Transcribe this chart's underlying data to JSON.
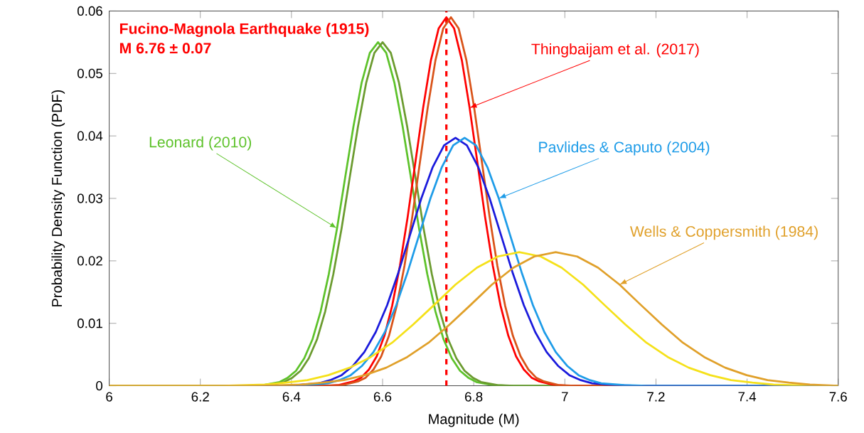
{
  "chart_data": {
    "type": "line",
    "xlabel": "Magnitude (M)",
    "ylabel": "Probability Density Function (PDF)",
    "annotations": [
      "Fucino-Magnola Earthquake (1915)",
      "M 6.76 ± 0.07"
    ],
    "xlim": [
      6,
      7.6
    ],
    "ylim": [
      0,
      0.06
    ],
    "xticks": [
      6,
      6.2,
      6.4,
      6.6,
      6.8,
      7,
      7.2,
      7.4,
      7.6
    ],
    "yticks": [
      0,
      0.01,
      0.02,
      0.03,
      0.04,
      0.05,
      0.06
    ],
    "grid": false,
    "legend": false,
    "marker": "none",
    "line_style": "solid",
    "ref_lines": [
      {
        "axis": "x",
        "value": 6.74,
        "color": "#ff0000",
        "line_style": "dashed"
      }
    ],
    "series": [
      {
        "name": "Leonard (2010)",
        "color": "#5dc22a",
        "x": [
          6.0,
          6.302,
          6.338,
          6.374,
          6.392,
          6.41,
          6.428,
          6.446,
          6.464,
          6.482,
          6.5,
          6.518,
          6.536,
          6.554,
          6.572,
          6.59,
          6.608,
          6.626,
          6.644,
          6.662,
          6.68,
          6.698,
          6.716,
          6.734,
          6.752,
          6.77,
          6.788,
          6.806,
          6.842,
          6.878,
          7.6
        ],
        "values": [
          0,
          0.0,
          0.0001,
          0.0006,
          0.0013,
          0.0024,
          0.0044,
          0.0074,
          0.0119,
          0.0179,
          0.0252,
          0.0334,
          0.0415,
          0.0485,
          0.0533,
          0.055,
          0.0533,
          0.0485,
          0.0415,
          0.0334,
          0.0252,
          0.0179,
          0.0119,
          0.0074,
          0.0044,
          0.0024,
          0.0013,
          0.0006,
          0.0001,
          0.0,
          0
        ]
      },
      {
        "color": "#6b9b2f",
        "x": [
          6.0,
          6.312,
          6.348,
          6.384,
          6.402,
          6.42,
          6.438,
          6.456,
          6.474,
          6.492,
          6.51,
          6.528,
          6.546,
          6.564,
          6.582,
          6.6,
          6.618,
          6.636,
          6.654,
          6.672,
          6.69,
          6.708,
          6.726,
          6.744,
          6.762,
          6.78,
          6.798,
          6.816,
          6.852,
          6.888,
          7.6
        ],
        "values": [
          0,
          0.0,
          0.0001,
          0.0006,
          0.0013,
          0.0024,
          0.0044,
          0.0074,
          0.0119,
          0.0179,
          0.0252,
          0.0334,
          0.0415,
          0.0485,
          0.0533,
          0.055,
          0.0533,
          0.0485,
          0.0415,
          0.0334,
          0.0252,
          0.0179,
          0.0119,
          0.0074,
          0.0044,
          0.0024,
          0.0013,
          0.0006,
          0.0001,
          0.0,
          0
        ]
      },
      {
        "name": "Thingbaijam et al. (2017)",
        "color": "#ff0000",
        "x": [
          6.0,
          6.468,
          6.502,
          6.536,
          6.553,
          6.57,
          6.587,
          6.604,
          6.621,
          6.638,
          6.655,
          6.672,
          6.689,
          6.706,
          6.723,
          6.74,
          6.757,
          6.774,
          6.791,
          6.808,
          6.825,
          6.842,
          6.859,
          6.876,
          6.893,
          6.91,
          6.927,
          6.944,
          6.978,
          7.012,
          7.6
        ],
        "values": [
          0,
          0.0,
          0.0001,
          0.0007,
          0.0013,
          0.0026,
          0.0047,
          0.008,
          0.0128,
          0.0192,
          0.027,
          0.0358,
          0.0445,
          0.0521,
          0.0572,
          0.059,
          0.0572,
          0.0521,
          0.0445,
          0.0358,
          0.027,
          0.0192,
          0.0128,
          0.008,
          0.0047,
          0.0026,
          0.0013,
          0.0007,
          0.0001,
          0.0,
          0
        ]
      },
      {
        "color": "#d95319",
        "x": [
          6.0,
          6.478,
          6.512,
          6.546,
          6.563,
          6.58,
          6.597,
          6.614,
          6.631,
          6.648,
          6.665,
          6.682,
          6.699,
          6.716,
          6.733,
          6.75,
          6.767,
          6.784,
          6.801,
          6.818,
          6.835,
          6.852,
          6.869,
          6.886,
          6.903,
          6.92,
          6.937,
          6.954,
          6.988,
          7.022,
          7.6
        ],
        "values": [
          0,
          0.0,
          0.0001,
          0.0007,
          0.0013,
          0.0026,
          0.0047,
          0.008,
          0.0128,
          0.0192,
          0.027,
          0.0358,
          0.0445,
          0.0521,
          0.0572,
          0.059,
          0.0572,
          0.0521,
          0.0445,
          0.0358,
          0.027,
          0.0192,
          0.0128,
          0.008,
          0.0047,
          0.0026,
          0.0013,
          0.0007,
          0.0001,
          0.0,
          0
        ]
      },
      {
        "color": "#1a1adc",
        "x": [
          6.41,
          6.46,
          6.485,
          6.51,
          6.535,
          6.56,
          6.585,
          6.61,
          6.635,
          6.66,
          6.685,
          6.71,
          6.735,
          6.76,
          6.785,
          6.81,
          6.835,
          6.86,
          6.885,
          6.91,
          6.935,
          6.96,
          6.985,
          7.01,
          7.035,
          7.06,
          7.11,
          7.16,
          7.6
        ],
        "values": [
          0.0001,
          0.0004,
          0.0009,
          0.0017,
          0.0032,
          0.0054,
          0.0086,
          0.0129,
          0.0182,
          0.0241,
          0.03,
          0.035,
          0.0385,
          0.0397,
          0.0385,
          0.035,
          0.03,
          0.0241,
          0.0182,
          0.0129,
          0.0086,
          0.0054,
          0.0032,
          0.0017,
          0.0009,
          0.0004,
          0.0001,
          0.0,
          0
        ]
      },
      {
        "name": "Pavlides & Caputo (2004)",
        "color": "#1e9ce8",
        "x": [
          6.0,
          6.38,
          6.43,
          6.48,
          6.505,
          6.53,
          6.555,
          6.58,
          6.605,
          6.63,
          6.655,
          6.68,
          6.705,
          6.73,
          6.755,
          6.78,
          6.805,
          6.83,
          6.855,
          6.88,
          6.905,
          6.93,
          6.955,
          6.98,
          7.005,
          7.03,
          7.055,
          7.08,
          7.13,
          7.18,
          7.6
        ],
        "values": [
          0,
          0.0,
          0.0001,
          0.0004,
          0.0009,
          0.0017,
          0.0032,
          0.0054,
          0.0086,
          0.0129,
          0.0182,
          0.0241,
          0.03,
          0.035,
          0.0385,
          0.0397,
          0.0385,
          0.035,
          0.03,
          0.0241,
          0.0182,
          0.0129,
          0.0086,
          0.0054,
          0.0032,
          0.0017,
          0.0009,
          0.0004,
          0.0001,
          0.0,
          0
        ]
      },
      {
        "color": "#f5e11a",
        "x": [
          6.0,
          6.156,
          6.249,
          6.342,
          6.388,
          6.435,
          6.481,
          6.528,
          6.574,
          6.621,
          6.667,
          6.714,
          6.76,
          6.807,
          6.853,
          6.9,
          6.947,
          6.993,
          7.04,
          7.086,
          7.133,
          7.179,
          7.226,
          7.272,
          7.319,
          7.365,
          7.412,
          7.458,
          7.551,
          7.6
        ],
        "values": [
          0,
          0.0,
          0.0,
          0.0002,
          0.0005,
          0.0009,
          0.0017,
          0.0029,
          0.0046,
          0.0069,
          0.0098,
          0.013,
          0.0162,
          0.0189,
          0.0207,
          0.0214,
          0.0207,
          0.0189,
          0.0162,
          0.013,
          0.0098,
          0.0069,
          0.0046,
          0.0029,
          0.0017,
          0.0009,
          0.0005,
          0.0002,
          0.0,
          0
        ]
      },
      {
        "name": "Wells & Coppersmith (1984)",
        "color": "#e0a02a",
        "x": [
          6.0,
          6.236,
          6.329,
          6.422,
          6.468,
          6.515,
          6.561,
          6.608,
          6.654,
          6.701,
          6.747,
          6.794,
          6.84,
          6.887,
          6.933,
          6.98,
          7.027,
          7.073,
          7.12,
          7.166,
          7.213,
          7.259,
          7.306,
          7.352,
          7.399,
          7.445,
          7.492,
          7.538,
          7.6
        ],
        "values": [
          0,
          0.0,
          0.0,
          0.0002,
          0.0005,
          0.0009,
          0.0017,
          0.0029,
          0.0046,
          0.0069,
          0.0098,
          0.013,
          0.0162,
          0.0189,
          0.0207,
          0.0214,
          0.0207,
          0.0189,
          0.0162,
          0.013,
          0.0098,
          0.0069,
          0.0046,
          0.0029,
          0.0017,
          0.0009,
          0.0005,
          0.0002,
          0
        ]
      }
    ]
  }
}
